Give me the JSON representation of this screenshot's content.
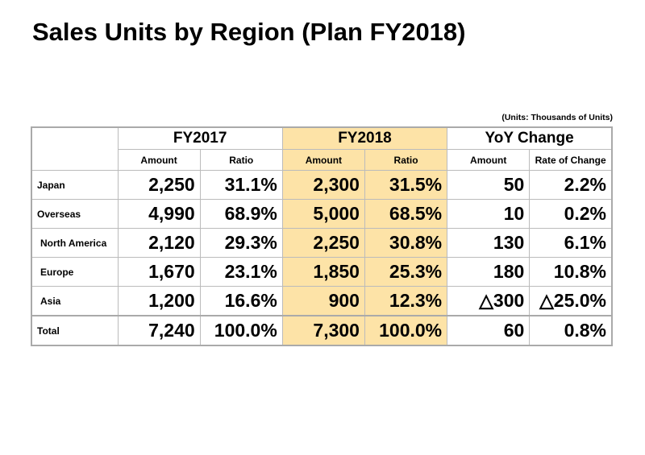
{
  "title": "Sales Units by Region (Plan FY2018)",
  "units": "(Units: Thousands of Units)",
  "headers": {
    "fy2017": "FY2017",
    "fy2018": "FY2018",
    "yoy": "YoY Change",
    "amount": "Amount",
    "ratio": "Ratio",
    "rate": "Rate of Change"
  },
  "highlight_color": "#fde3a7",
  "rows": [
    {
      "label": "Japan",
      "v": [
        "2,250",
        "31.1%",
        "2,300",
        "31.5%",
        "50",
        "2.2%"
      ]
    },
    {
      "label": "Overseas",
      "v": [
        "4,990",
        "68.9%",
        "5,000",
        "68.5%",
        "10",
        "0.2%"
      ]
    },
    {
      "label": "North America",
      "v": [
        "2,120",
        "29.3%",
        "2,250",
        "30.8%",
        "130",
        "6.1%"
      ]
    },
    {
      "label": "Europe",
      "v": [
        "1,670",
        "23.1%",
        "1,850",
        "25.3%",
        "180",
        "10.8%"
      ]
    },
    {
      "label": "Asia",
      "v": [
        "1,200",
        "16.6%",
        "900",
        "12.3%",
        "△300",
        "△25.0%"
      ]
    },
    {
      "label": "Total",
      "v": [
        "7,240",
        "100.0%",
        "7,300",
        "100.0%",
        "60",
        "0.8%"
      ]
    }
  ]
}
